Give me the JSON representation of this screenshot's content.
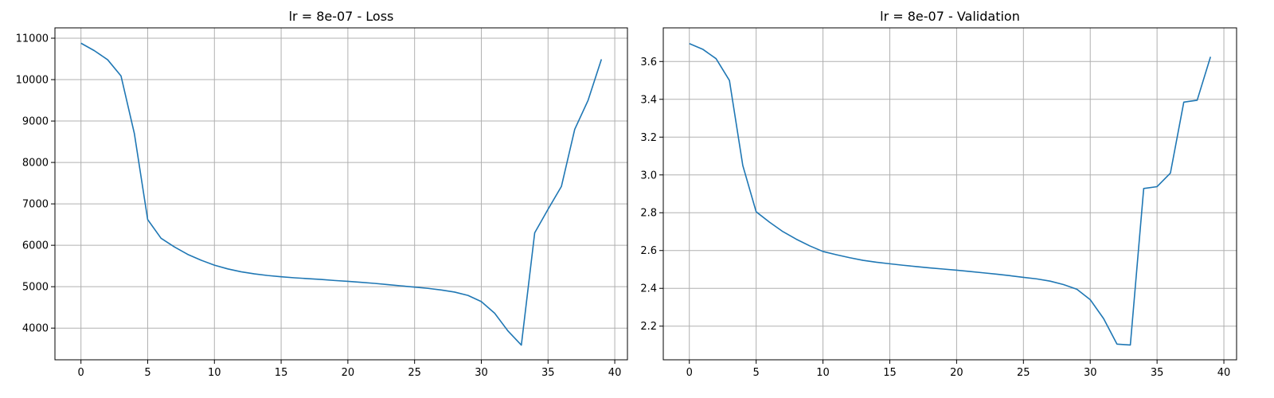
{
  "chart_data": [
    {
      "type": "line",
      "title": "lr = 8e-07 - Loss",
      "xlabel": "",
      "ylabel": "",
      "xlim": [
        -1.95,
        40.95
      ],
      "ylim": [
        3235,
        11250
      ],
      "xticks": [
        0,
        5,
        10,
        15,
        20,
        25,
        30,
        35,
        40
      ],
      "yticks": [
        4000,
        5000,
        6000,
        7000,
        8000,
        9000,
        10000,
        11000
      ],
      "grid": true,
      "line_color": "#1f77b4",
      "x": [
        0,
        1,
        2,
        3,
        4,
        5,
        6,
        7,
        8,
        9,
        10,
        11,
        12,
        13,
        14,
        15,
        16,
        17,
        18,
        19,
        20,
        21,
        22,
        23,
        24,
        25,
        26,
        27,
        28,
        29,
        30,
        31,
        32,
        33,
        34,
        35,
        36,
        37,
        38,
        39
      ],
      "series": [
        {
          "values": [
            10880,
            10700,
            10480,
            10090,
            8700,
            6620,
            6170,
            5960,
            5780,
            5640,
            5520,
            5430,
            5360,
            5310,
            5270,
            5240,
            5215,
            5195,
            5175,
            5150,
            5130,
            5105,
            5080,
            5050,
            5020,
            4990,
            4960,
            4920,
            4870,
            4790,
            4640,
            4360,
            3930,
            3590,
            6300,
            6870,
            7420,
            8800,
            9500,
            10490
          ]
        }
      ]
    },
    {
      "type": "line",
      "title": "lr = 8e-07 - Validation",
      "xlabel": "",
      "ylabel": "",
      "xlim": [
        -1.95,
        40.95
      ],
      "ylim": [
        2.022,
        3.778
      ],
      "xticks": [
        0,
        5,
        10,
        15,
        20,
        25,
        30,
        35,
        40
      ],
      "yticks": [
        2.2,
        2.4,
        2.6,
        2.8,
        3.0,
        3.2,
        3.4,
        3.6
      ],
      "ytick_decimals": 1,
      "grid": true,
      "line_color": "#1f77b4",
      "x": [
        0,
        1,
        2,
        3,
        4,
        5,
        6,
        7,
        8,
        9,
        10,
        11,
        12,
        13,
        14,
        15,
        16,
        17,
        18,
        19,
        20,
        21,
        22,
        23,
        24,
        25,
        26,
        27,
        28,
        29,
        30,
        31,
        32,
        33,
        34,
        35,
        36,
        37,
        38,
        39
      ],
      "series": [
        {
          "values": [
            3.695,
            3.665,
            3.615,
            3.5,
            3.05,
            2.805,
            2.75,
            2.7,
            2.66,
            2.625,
            2.595,
            2.578,
            2.562,
            2.548,
            2.538,
            2.53,
            2.522,
            2.515,
            2.508,
            2.502,
            2.496,
            2.489,
            2.482,
            2.475,
            2.467,
            2.458,
            2.45,
            2.438,
            2.42,
            2.395,
            2.34,
            2.24,
            2.105,
            2.1,
            2.928,
            2.938,
            3.01,
            3.385,
            3.395,
            3.625
          ]
        }
      ]
    }
  ]
}
